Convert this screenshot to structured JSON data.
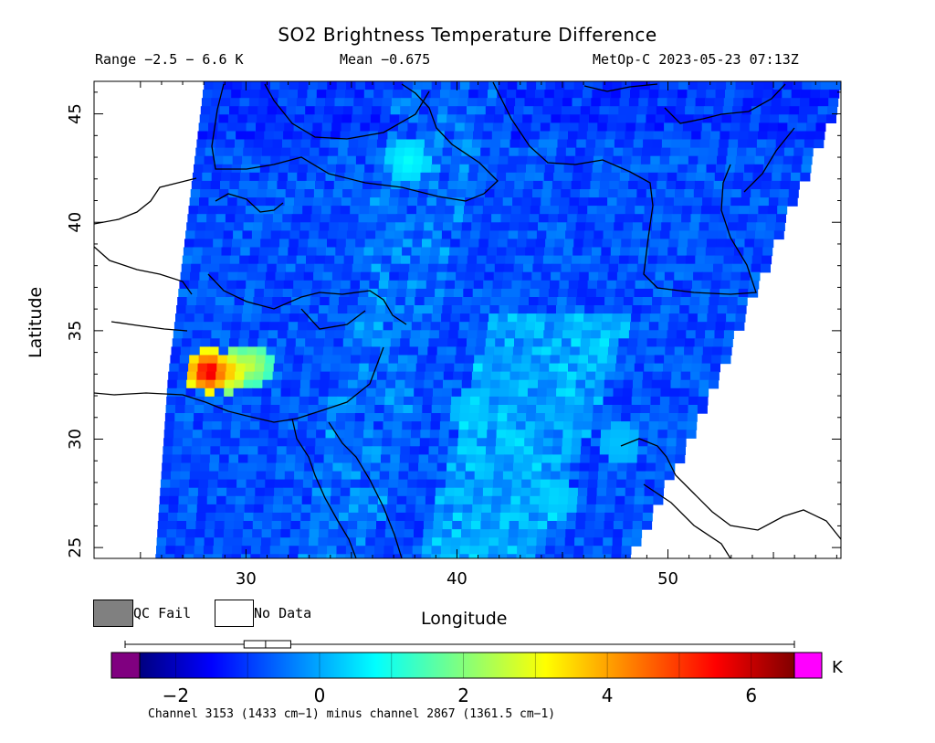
{
  "title": "SO2 Brightness Temperature Difference",
  "stats": {
    "range": "Range −2.5 − 6.6 K",
    "mean": "Mean −0.675",
    "satellite_time": "MetOp-C 2023-05-23 07:13Z"
  },
  "axes": {
    "xlabel": "Longitude",
    "ylabel": "Latitude",
    "xticks": [
      "30",
      "40",
      "50"
    ],
    "yticks": [
      "25",
      "30",
      "35",
      "40",
      "45"
    ],
    "xlim": [
      22.8,
      58.2
    ],
    "ylim": [
      24.5,
      46.5
    ]
  },
  "legend": {
    "qc_fail": "QC Fail",
    "no_data": "No Data",
    "qc_fail_color": "#808080",
    "no_data_color": "#ffffff"
  },
  "colorbar": {
    "unit": "K",
    "ticks": [
      "−2",
      "0",
      "2",
      "4",
      "6"
    ],
    "tick_values": [
      -2,
      0,
      2,
      4,
      6
    ],
    "min": -2.5,
    "max": 6.6,
    "under_color": "#800080",
    "over_color": "#ff00ff",
    "boxplot": {
      "min": -2.5,
      "q1": -1.05,
      "median": -0.75,
      "q3": -0.4,
      "max": 6.6
    }
  },
  "caption": "Channel 3153 (1433 cm−1) minus channel 2867 (1361.5 cm−1)",
  "chart_data": {
    "type": "heatmap",
    "title": "SO2 Brightness Temperature Difference",
    "xlabel": "Longitude",
    "ylabel": "Latitude",
    "xlim": [
      22.8,
      58.2
    ],
    "ylim": [
      24.5,
      46.5
    ],
    "value_range": [
      -2.5,
      6.6
    ],
    "mean": -0.675,
    "units": "K",
    "swath": {
      "left_edge": [
        [
          28.0,
          46.5
        ],
        [
          26.3,
          33.0
        ],
        [
          25.7,
          24.5
        ]
      ],
      "right_edge": [
        [
          58.2,
          46.5
        ],
        [
          51.0,
          30.5
        ],
        [
          47.9,
          24.5
        ]
      ]
    },
    "features": [
      {
        "lon": 28.0,
        "lat": 33.3,
        "value": 6.2
      },
      {
        "lon": 29.0,
        "lat": 33.3,
        "value": 4.0
      },
      {
        "lon": 30.0,
        "lat": 33.6,
        "value": 2.8
      },
      {
        "lon": 37.5,
        "lat": 43.0,
        "value": 1.0
      },
      {
        "lon": 40.5,
        "lat": 31.5,
        "value": 0.5
      },
      {
        "lon": 44.5,
        "lat": 27.5,
        "value": 0.6
      },
      {
        "lon": 47.5,
        "lat": 30.0,
        "value": 0.4
      }
    ]
  }
}
